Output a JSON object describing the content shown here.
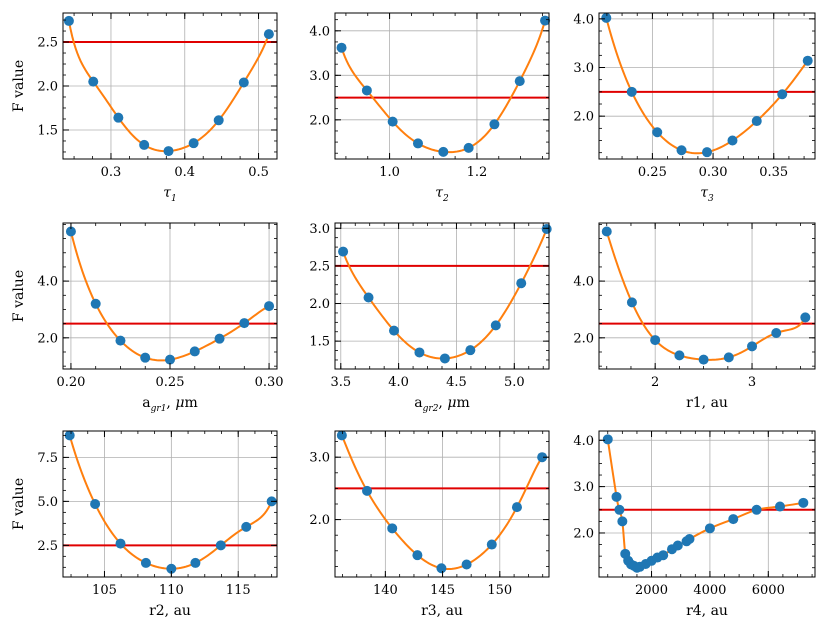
{
  "figure": {
    "ylabel": "F value",
    "threshold": 2.5,
    "colors": {
      "marker": "#1f77b4",
      "curve": "#ff7f0e",
      "threshold": "#e00000",
      "grid": "#b0b0b0"
    }
  },
  "chart_data": [
    {
      "type": "scatter",
      "xlabel": {
        "base": "τ",
        "sub": "1",
        "suffix": ""
      },
      "ylabel": "F value",
      "xlim": [
        0.235,
        0.525
      ],
      "ylim": [
        1.17,
        2.83
      ],
      "xticks": [
        {
          "v": 0.3,
          "label": "0.3"
        },
        {
          "v": 0.4,
          "label": "0.4"
        },
        {
          "v": 0.5,
          "label": "0.5"
        }
      ],
      "yticks": [
        {
          "v": 1.5,
          "label": "1.5"
        },
        {
          "v": 2.0,
          "label": "2.0"
        },
        {
          "v": 2.5,
          "label": "2.5"
        }
      ],
      "x": [
        0.243,
        0.276,
        0.31,
        0.345,
        0.378,
        0.412,
        0.446,
        0.48,
        0.514
      ],
      "y": [
        2.74,
        2.05,
        1.64,
        1.33,
        1.26,
        1.35,
        1.61,
        2.04,
        2.59
      ],
      "threshold": 2.5,
      "grid": true
    },
    {
      "type": "scatter",
      "xlabel": {
        "base": "τ",
        "sub": "2",
        "suffix": ""
      },
      "ylabel": "",
      "xlim": [
        0.875,
        1.365
      ],
      "ylim": [
        1.12,
        4.4
      ],
      "xticks": [
        {
          "v": 1.0,
          "label": "1.0"
        },
        {
          "v": 1.2,
          "label": "1.2"
        }
      ],
      "yticks": [
        {
          "v": 2.0,
          "label": "2.0"
        },
        {
          "v": 3.0,
          "label": "3.0"
        },
        {
          "v": 4.0,
          "label": "4.0"
        }
      ],
      "x": [
        0.89,
        0.948,
        1.007,
        1.065,
        1.123,
        1.181,
        1.24,
        1.298,
        1.356
      ],
      "y": [
        3.62,
        2.66,
        1.96,
        1.47,
        1.28,
        1.37,
        1.9,
        2.87,
        4.23
      ],
      "threshold": 2.5,
      "grid": true
    },
    {
      "type": "scatter",
      "xlabel": {
        "base": "τ",
        "sub": "3",
        "suffix": ""
      },
      "ylabel": "",
      "xlim": [
        0.206,
        0.384
      ],
      "ylim": [
        1.12,
        4.12
      ],
      "xticks": [
        {
          "v": 0.25,
          "label": "0.25"
        },
        {
          "v": 0.3,
          "label": "0.30"
        },
        {
          "v": 0.35,
          "label": "0.35"
        }
      ],
      "yticks": [
        {
          "v": 2.0,
          "label": "2.0"
        },
        {
          "v": 3.0,
          "label": "3.0"
        },
        {
          "v": 4.0,
          "label": "4.0"
        }
      ],
      "x": [
        0.212,
        0.233,
        0.254,
        0.274,
        0.295,
        0.316,
        0.336,
        0.357,
        0.378
      ],
      "y": [
        4.02,
        2.5,
        1.67,
        1.3,
        1.26,
        1.5,
        1.9,
        2.45,
        3.14
      ],
      "threshold": 2.5,
      "grid": true
    },
    {
      "type": "scatter",
      "xlabel": {
        "base": "a",
        "sub": "gr1",
        "suffix": ", μm"
      },
      "ylabel": "F value",
      "xlim": [
        0.196,
        0.304
      ],
      "ylim": [
        0.9,
        6.05
      ],
      "xticks": [
        {
          "v": 0.2,
          "label": "0.20"
        },
        {
          "v": 0.25,
          "label": "0.25"
        },
        {
          "v": 0.3,
          "label": "0.30"
        }
      ],
      "yticks": [
        {
          "v": 2.0,
          "label": "2.0"
        },
        {
          "v": 4.0,
          "label": "4.0"
        }
      ],
      "x": [
        0.2,
        0.2125,
        0.225,
        0.2375,
        0.25,
        0.2625,
        0.275,
        0.2875,
        0.3
      ],
      "y": [
        5.75,
        3.2,
        1.9,
        1.3,
        1.23,
        1.52,
        1.97,
        2.52,
        3.12
      ],
      "threshold": 2.5,
      "grid": true
    },
    {
      "type": "scatter",
      "xlabel": {
        "base": "a",
        "sub": "gr2",
        "suffix": ", μm"
      },
      "ylabel": "",
      "xlim": [
        3.45,
        5.3
      ],
      "ylim": [
        1.13,
        3.07
      ],
      "xticks": [
        {
          "v": 3.5,
          "label": "3.5"
        },
        {
          "v": 4.0,
          "label": "4.0"
        },
        {
          "v": 4.5,
          "label": "4.5"
        },
        {
          "v": 5.0,
          "label": "5.0"
        }
      ],
      "yticks": [
        {
          "v": 1.5,
          "label": "1.5"
        },
        {
          "v": 2.0,
          "label": "2.0"
        },
        {
          "v": 2.5,
          "label": "2.5"
        },
        {
          "v": 3.0,
          "label": "3.0"
        }
      ],
      "x": [
        3.52,
        3.74,
        3.96,
        4.18,
        4.4,
        4.62,
        4.84,
        5.06,
        5.28
      ],
      "y": [
        2.69,
        2.08,
        1.64,
        1.35,
        1.27,
        1.38,
        1.71,
        2.27,
        2.99
      ],
      "threshold": 2.5,
      "grid": true
    },
    {
      "type": "scatter",
      "xlabel": {
        "base": "r1, au",
        "sub": "",
        "suffix": ""
      },
      "ylabel": "",
      "xlim": [
        1.42,
        3.65
      ],
      "ylim": [
        0.9,
        6.05
      ],
      "xticks": [
        {
          "v": 2,
          "label": "2"
        },
        {
          "v": 3,
          "label": "3"
        }
      ],
      "yticks": [
        {
          "v": 2.0,
          "label": "2.0"
        },
        {
          "v": 4.0,
          "label": "4.0"
        }
      ],
      "x": [
        1.5,
        1.76,
        2.0,
        2.25,
        2.5,
        2.76,
        3.0,
        3.25,
        3.55
      ],
      "y": [
        5.75,
        3.25,
        1.92,
        1.38,
        1.23,
        1.31,
        1.7,
        2.17,
        2.72
      ],
      "threshold": 2.5,
      "grid": true
    },
    {
      "type": "scatter",
      "xlabel": {
        "base": "r2, au",
        "sub": "",
        "suffix": ""
      },
      "ylabel": "F value",
      "xlim": [
        101.9,
        117.9
      ],
      "ylim": [
        0.7,
        9.0
      ],
      "xticks": [
        {
          "v": 105,
          "label": "105"
        },
        {
          "v": 110,
          "label": "110"
        },
        {
          "v": 115,
          "label": "115"
        }
      ],
      "yticks": [
        {
          "v": 2.5,
          "label": "2.5"
        },
        {
          "v": 5.0,
          "label": "5.0"
        },
        {
          "v": 7.5,
          "label": "7.5"
        }
      ],
      "x": [
        102.4,
        104.3,
        106.2,
        108.1,
        110.0,
        111.8,
        113.7,
        115.6,
        117.5
      ],
      "y": [
        8.75,
        4.85,
        2.6,
        1.5,
        1.17,
        1.5,
        2.5,
        3.55,
        5.0
      ],
      "threshold": 2.5,
      "grid": true
    },
    {
      "type": "scatter",
      "xlabel": {
        "base": "r3, au",
        "sub": "",
        "suffix": ""
      },
      "ylabel": "",
      "xlim": [
        135.6,
        154.3
      ],
      "ylim": [
        1.08,
        3.42
      ],
      "xticks": [
        {
          "v": 140,
          "label": "140"
        },
        {
          "v": 145,
          "label": "145"
        },
        {
          "v": 150,
          "label": "150"
        }
      ],
      "yticks": [
        {
          "v": 2.0,
          "label": "2.0"
        },
        {
          "v": 3.0,
          "label": "3.0"
        }
      ],
      "x": [
        136.2,
        138.4,
        140.6,
        142.8,
        144.9,
        147.1,
        149.3,
        151.5,
        153.7
      ],
      "y": [
        3.35,
        2.46,
        1.86,
        1.43,
        1.22,
        1.28,
        1.6,
        2.2,
        3.0
      ],
      "threshold": 2.5,
      "grid": true
    },
    {
      "type": "scatter",
      "xlabel": {
        "base": "r4, au",
        "sub": "",
        "suffix": ""
      },
      "ylabel": "",
      "xlim": [
        200,
        7600
      ],
      "ylim": [
        1.05,
        4.2
      ],
      "xticks": [
        {
          "v": 2000,
          "label": "2000"
        },
        {
          "v": 4000,
          "label": "4000"
        },
        {
          "v": 6000,
          "label": "6000"
        }
      ],
      "yticks": [
        {
          "v": 2.0,
          "label": "2.0"
        },
        {
          "v": 3.0,
          "label": "3.0"
        },
        {
          "v": 4.0,
          "label": "4.0"
        }
      ],
      "x": [
        500,
        800,
        900,
        1000,
        1100,
        1200,
        1300,
        1400,
        1500,
        1600,
        1800,
        2000,
        2200,
        2400,
        2700,
        2900,
        3200,
        3300,
        4000,
        4800,
        5600,
        6400,
        7200
      ],
      "y": [
        4.02,
        2.78,
        2.5,
        2.25,
        1.55,
        1.4,
        1.32,
        1.29,
        1.25,
        1.27,
        1.33,
        1.4,
        1.47,
        1.52,
        1.65,
        1.73,
        1.82,
        1.87,
        2.1,
        2.3,
        2.5,
        2.57,
        2.65
      ],
      "threshold": 2.5,
      "grid": true
    }
  ]
}
